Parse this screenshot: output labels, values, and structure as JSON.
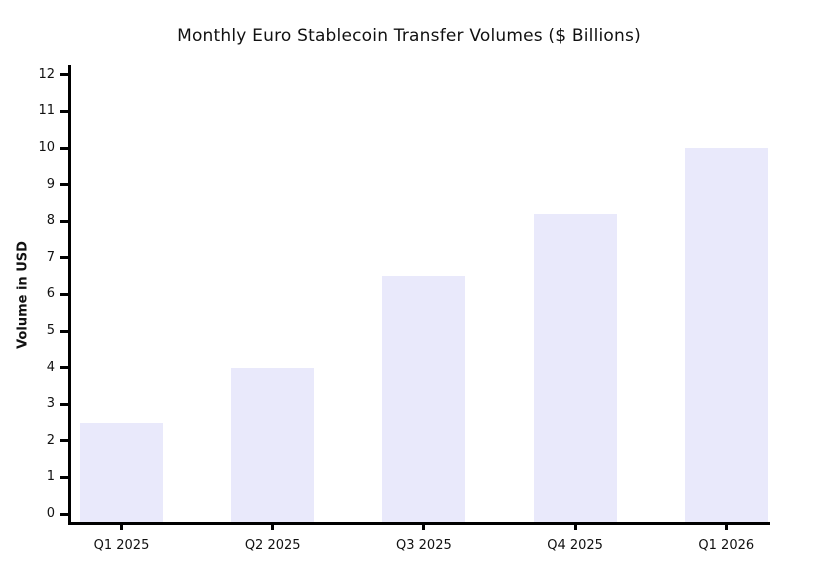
{
  "chart_data": {
    "type": "bar",
    "title": "Monthly Euro Stablecoin Transfer Volumes ($ Billions)",
    "categories": [
      "Q1 2025",
      "Q2 2025",
      "Q3 2025",
      "Q4 2025",
      "Q1 2026"
    ],
    "values": [
      2.5,
      4.0,
      6.5,
      8.2,
      10.0
    ],
    "xlabel": "",
    "ylabel": "Volume in USD",
    "ylim": [
      0,
      12
    ],
    "ytick_step": 1,
    "grid": false,
    "legend": "none",
    "bar_color": "#E9E9FB",
    "axis_color": "#000000",
    "text_color": "#111111",
    "background_color": "#FFFFFF"
  }
}
